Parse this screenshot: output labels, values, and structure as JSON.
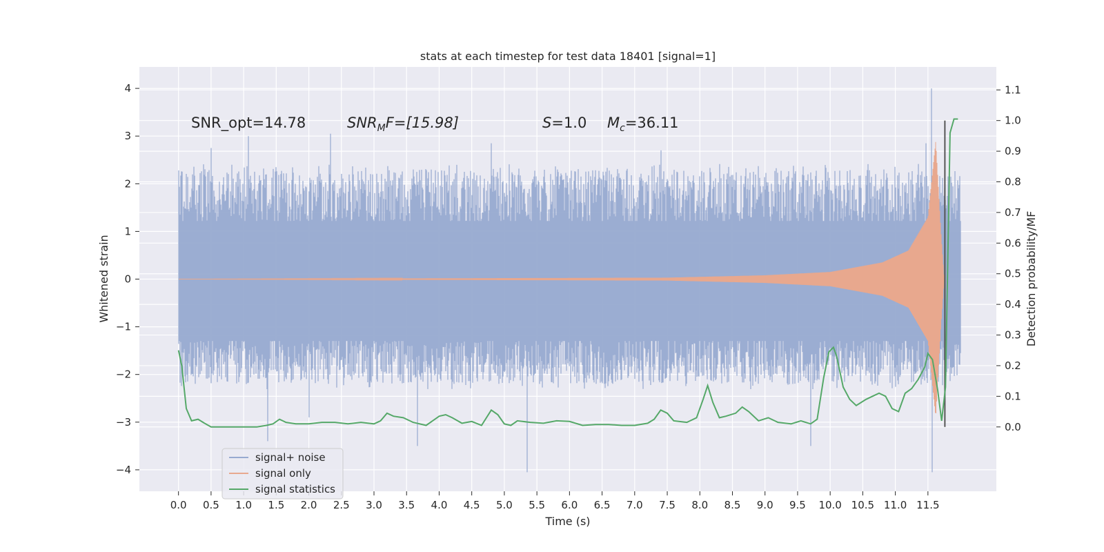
{
  "chart_data": {
    "type": "line",
    "title": "stats at each timestep for test data 18401 [signal=1]",
    "xlabel": "Time (s)",
    "ylabel_left": "Whitened strain",
    "ylabel_right": "Detection probability/MF",
    "xlim": [
      -0.6,
      12.55
    ],
    "ylim_left": [
      -4.45,
      4.45
    ],
    "ylim_right": [
      -0.21,
      1.175
    ],
    "x_ticks": [
      0.0,
      0.5,
      1.0,
      1.5,
      2.0,
      2.5,
      3.0,
      3.5,
      4.0,
      4.5,
      5.0,
      5.5,
      6.0,
      6.5,
      7.0,
      7.5,
      8.0,
      8.5,
      9.0,
      9.5,
      10.0,
      10.5,
      11.0,
      11.5
    ],
    "x_tick_labels": [
      "0.0",
      "0.5",
      "1.0",
      "1.5",
      "2.0",
      "2.5",
      "3.0",
      "3.5",
      "4.0",
      "4.5",
      "5.0",
      "5.5",
      "6.0",
      "6.5",
      "7.0",
      "7.5",
      "8.0",
      "8.5",
      "9.0",
      "9.5",
      "10.0",
      "10.5",
      "11.0",
      "11.5"
    ],
    "y_left_ticks": [
      4,
      3,
      2,
      1,
      0,
      -1,
      -2,
      -3,
      -4
    ],
    "y_left_tick_labels": [
      "4",
      "3",
      "2",
      "1",
      "0",
      "−1",
      "−2",
      "−3",
      "−4"
    ],
    "y_right_ticks": [
      1.1,
      1.0,
      0.9,
      0.8,
      0.7,
      0.6,
      0.5,
      0.4,
      0.3,
      0.2,
      0.1,
      0.0
    ],
    "y_right_tick_labels": [
      "1.1",
      "1.0",
      "0.9",
      "0.8",
      "0.7",
      "0.6",
      "0.5",
      "0.4",
      "0.3",
      "0.2",
      "0.1",
      "0.0"
    ],
    "grid": true,
    "legend_position": "lower-left",
    "annotations": [
      {
        "text": "SNR_opt=14.78",
        "style": "normal"
      },
      {
        "text": "SNR",
        "sub": "M",
        "tail": "F=[15.98]",
        "style": "italic"
      },
      {
        "text": "S",
        "tail": "=1.0",
        "style": "italic"
      },
      {
        "text": "M",
        "sub": "c",
        "tail": "=36.11",
        "style": "italic"
      }
    ],
    "colors": {
      "background": "#eaeaf2",
      "grid": "#ffffff",
      "noise": "#97aad0",
      "signal": "#e8a88e",
      "statistics": "#55a868",
      "marker": "#555555"
    },
    "series": [
      {
        "name": "signal+ noise",
        "axis": "left",
        "style": "dense-noise",
        "x_range": [
          0.0,
          12.0
        ],
        "band_envelope": [
          1.22,
          -1.3
        ],
        "peak_envelope_typical": [
          2.3,
          -2.2
        ],
        "peaks": [
          {
            "x": 0.5,
            "y": 2.75
          },
          {
            "x": 1.07,
            "y": 3.0
          },
          {
            "x": 1.37,
            "y": -3.4
          },
          {
            "x": 2.0,
            "y": -2.9
          },
          {
            "x": 2.33,
            "y": 3.05
          },
          {
            "x": 3.67,
            "y": -3.5
          },
          {
            "x": 4.8,
            "y": 2.85
          },
          {
            "x": 5.35,
            "y": -4.05
          },
          {
            "x": 7.4,
            "y": 2.7
          },
          {
            "x": 9.7,
            "y": -3.5
          },
          {
            "x": 11.47,
            "y": 2.85
          },
          {
            "x": 11.55,
            "y": 4.0
          },
          {
            "x": 11.57,
            "y": -4.05
          }
        ]
      },
      {
        "name": "signal only",
        "axis": "left",
        "style": "chirp",
        "x_range": [
          0.0,
          11.75
        ],
        "amplitude_points": [
          [
            0.0,
            0.0
          ],
          [
            7.5,
            0.03
          ],
          [
            9.0,
            0.08
          ],
          [
            10.0,
            0.15
          ],
          [
            10.8,
            0.35
          ],
          [
            11.2,
            0.6
          ],
          [
            11.5,
            1.3
          ],
          [
            11.62,
            2.9
          ],
          [
            11.7,
            1.0
          ],
          [
            11.75,
            0.0
          ]
        ]
      },
      {
        "name": "signal statistics",
        "axis": "right",
        "style": "line",
        "x": [
          0.0,
          0.05,
          0.12,
          0.2,
          0.3,
          0.4,
          0.5,
          0.6,
          0.8,
          1.0,
          1.2,
          1.35,
          1.45,
          1.55,
          1.65,
          1.8,
          2.0,
          2.2,
          2.4,
          2.6,
          2.8,
          3.0,
          3.1,
          3.2,
          3.3,
          3.45,
          3.6,
          3.8,
          4.0,
          4.1,
          4.2,
          4.35,
          4.5,
          4.65,
          4.8,
          4.9,
          5.0,
          5.1,
          5.2,
          5.4,
          5.6,
          5.8,
          6.0,
          6.2,
          6.4,
          6.6,
          6.8,
          7.0,
          7.2,
          7.3,
          7.4,
          7.5,
          7.6,
          7.8,
          7.95,
          8.05,
          8.12,
          8.2,
          8.3,
          8.4,
          8.55,
          8.65,
          8.75,
          8.9,
          9.05,
          9.2,
          9.4,
          9.55,
          9.7,
          9.8,
          9.9,
          9.98,
          10.05,
          10.1,
          10.2,
          10.3,
          10.4,
          10.55,
          10.65,
          10.75,
          10.85,
          10.95,
          11.05,
          11.15,
          11.25,
          11.35,
          11.45,
          11.5,
          11.57,
          11.65,
          11.71,
          11.77,
          11.84,
          11.9,
          11.96
        ],
        "values": [
          0.25,
          0.2,
          0.06,
          0.02,
          0.025,
          0.012,
          0.0,
          0.0,
          0.0,
          0.0,
          0.0,
          0.005,
          0.01,
          0.025,
          0.015,
          0.01,
          0.01,
          0.015,
          0.015,
          0.01,
          0.015,
          0.01,
          0.02,
          0.045,
          0.035,
          0.03,
          0.015,
          0.005,
          0.035,
          0.04,
          0.03,
          0.012,
          0.018,
          0.005,
          0.055,
          0.04,
          0.01,
          0.005,
          0.02,
          0.015,
          0.012,
          0.02,
          0.018,
          0.005,
          0.008,
          0.008,
          0.005,
          0.005,
          0.012,
          0.025,
          0.055,
          0.045,
          0.02,
          0.015,
          0.03,
          0.09,
          0.135,
          0.08,
          0.03,
          0.035,
          0.045,
          0.065,
          0.05,
          0.02,
          0.03,
          0.015,
          0.01,
          0.02,
          0.01,
          0.025,
          0.16,
          0.245,
          0.26,
          0.23,
          0.13,
          0.09,
          0.07,
          0.09,
          0.1,
          0.11,
          0.1,
          0.06,
          0.05,
          0.11,
          0.125,
          0.155,
          0.195,
          0.24,
          0.22,
          0.12,
          0.02,
          0.13,
          0.96,
          1.005,
          1.005
        ]
      }
    ],
    "marker_line": {
      "x": 11.76,
      "y_right_range": [
        0.0,
        1.0
      ]
    }
  }
}
